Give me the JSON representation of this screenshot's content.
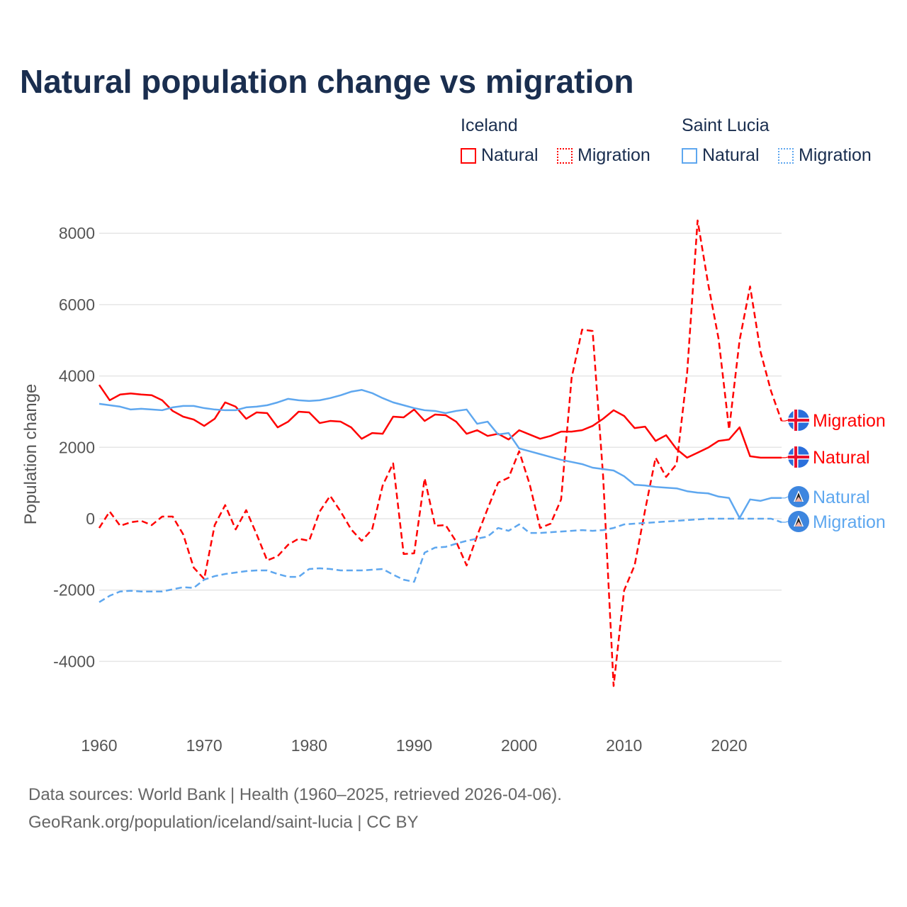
{
  "chart_data": {
    "type": "line",
    "title": "Natural population change vs migration",
    "ylabel": "Population change",
    "xlabel": "",
    "xlim": [
      1960,
      2025
    ],
    "ylim": [
      -5000,
      8500
    ],
    "x_ticks": [
      1960,
      1970,
      1980,
      1990,
      2000,
      2010,
      2020
    ],
    "y_ticks": [
      -4000,
      -2000,
      0,
      2000,
      4000,
      6000,
      8000
    ],
    "y_tick_labels": [
      "-4000",
      "-2000",
      "0",
      "2000",
      "4000",
      "6000",
      "8000"
    ],
    "grid": "horizontal",
    "legend_placement": "top-right",
    "legend": {
      "groups": [
        {
          "country": "Iceland",
          "entries": [
            "Natural",
            "Migration"
          ]
        },
        {
          "country": "Saint Lucia",
          "entries": [
            "Natural",
            "Migration"
          ]
        }
      ]
    },
    "start_year": 1960,
    "series": [
      {
        "name": "Iceland Natural",
        "country": "Iceland",
        "kind": "Natural",
        "end_label": "Natural",
        "color": "#ff0000",
        "dashed": false,
        "flag": "iceland-flag",
        "values": [
          3750,
          3320,
          3480,
          3510,
          3480,
          3460,
          3320,
          3020,
          2860,
          2780,
          2600,
          2800,
          3260,
          3140,
          2800,
          2980,
          2960,
          2560,
          2720,
          3000,
          2980,
          2680,
          2740,
          2720,
          2560,
          2240,
          2400,
          2380,
          2860,
          2840,
          3060,
          2740,
          2920,
          2900,
          2720,
          2380,
          2480,
          2320,
          2380,
          2220,
          2480,
          2360,
          2240,
          2320,
          2440,
          2440,
          2480,
          2600,
          2800,
          3040,
          2880,
          2540,
          2580,
          2180,
          2340,
          1950,
          1710,
          1850,
          1990,
          2180,
          2220,
          2560,
          1750,
          1710,
          1710,
          1710
        ]
      },
      {
        "name": "Iceland Migration",
        "country": "Iceland",
        "kind": "Migration",
        "end_label": "Migration",
        "color": "#ff0000",
        "dashed": true,
        "flag": "iceland-flag",
        "values": [
          -260,
          200,
          -200,
          -100,
          -60,
          -180,
          60,
          60,
          -440,
          -1370,
          -1690,
          -180,
          380,
          -300,
          240,
          -440,
          -1170,
          -1050,
          -730,
          -560,
          -620,
          200,
          640,
          200,
          -300,
          -620,
          -300,
          930,
          1550,
          -990,
          -970,
          1130,
          -200,
          -180,
          -640,
          -1310,
          -480,
          280,
          1010,
          1150,
          1890,
          970,
          -260,
          -140,
          540,
          3950,
          5300,
          5260,
          1190,
          -4690,
          -2010,
          -1310,
          240,
          1710,
          1170,
          1530,
          4070,
          8360,
          6590,
          5040,
          2500,
          5000,
          6510,
          4670,
          3570,
          2740
        ]
      },
      {
        "name": "Saint Lucia Natural",
        "country": "Saint Lucia",
        "kind": "Natural",
        "end_label": "Natural",
        "color": "#5ea7ef",
        "dashed": false,
        "flag": "saint-lucia-flag",
        "values": [
          3220,
          3180,
          3140,
          3060,
          3080,
          3060,
          3040,
          3120,
          3160,
          3160,
          3100,
          3060,
          3040,
          3040,
          3120,
          3140,
          3180,
          3260,
          3360,
          3320,
          3300,
          3320,
          3380,
          3460,
          3560,
          3610,
          3520,
          3380,
          3260,
          3180,
          3100,
          3040,
          3020,
          2960,
          3020,
          3060,
          2660,
          2720,
          2360,
          2400,
          1970,
          1890,
          1810,
          1730,
          1650,
          1590,
          1530,
          1430,
          1390,
          1350,
          1190,
          950,
          930,
          890,
          870,
          850,
          770,
          730,
          710,
          620,
          580,
          20,
          540,
          500,
          580,
          580
        ]
      },
      {
        "name": "Saint Lucia Migration",
        "country": "Saint Lucia",
        "kind": "Migration",
        "end_label": "Migration",
        "color": "#5ea7ef",
        "dashed": true,
        "flag": "saint-lucia-flag",
        "values": [
          -2340,
          -2160,
          -2040,
          -2020,
          -2040,
          -2040,
          -2040,
          -1980,
          -1920,
          -1940,
          -1710,
          -1610,
          -1550,
          -1510,
          -1470,
          -1450,
          -1450,
          -1550,
          -1630,
          -1630,
          -1410,
          -1390,
          -1410,
          -1450,
          -1450,
          -1450,
          -1430,
          -1410,
          -1570,
          -1710,
          -1770,
          -950,
          -810,
          -790,
          -700,
          -620,
          -560,
          -500,
          -260,
          -340,
          -160,
          -400,
          -400,
          -380,
          -360,
          -340,
          -320,
          -340,
          -320,
          -260,
          -160,
          -140,
          -120,
          -100,
          -80,
          -60,
          -40,
          -20,
          0,
          0,
          0,
          0,
          0,
          0,
          0,
          -100
        ]
      }
    ]
  },
  "footer": {
    "line1": "Data sources: World Bank | Health (1960–2025, retrieved 2026-04-06).",
    "line2": "GeoRank.org/population/iceland/saint-lucia | CC BY"
  },
  "colors": {
    "title": "#1a2e4f",
    "axis_text": "#555555",
    "grid": "#e6e6e6",
    "iceland": "#ff0000",
    "saint_lucia": "#5ea7ef"
  }
}
